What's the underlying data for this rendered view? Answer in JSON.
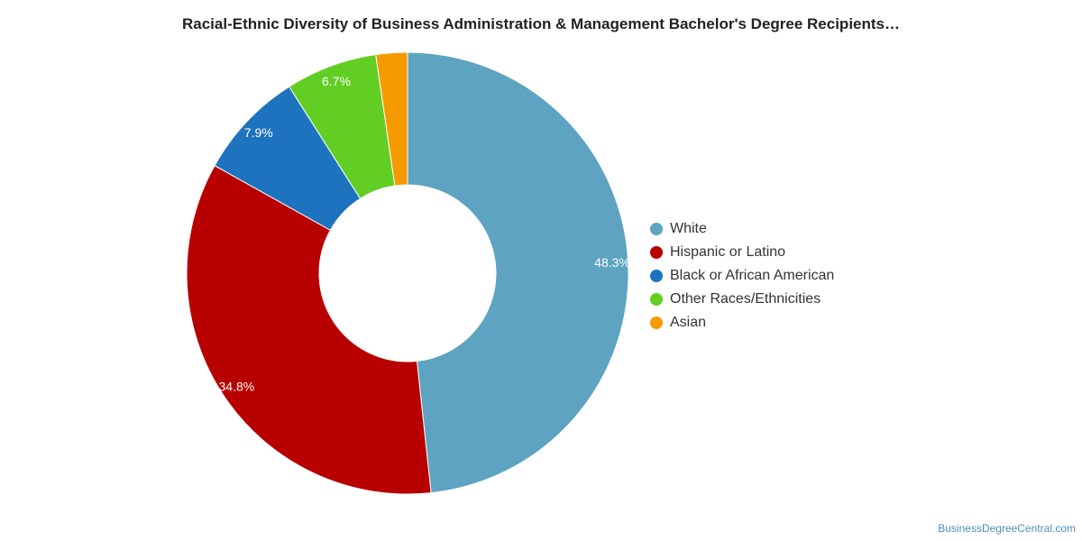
{
  "chart_data": {
    "type": "pie",
    "donut": true,
    "title": "Racial-Ethnic Diversity of Business Administration & Management Bachelor's Degree Recipients…",
    "legend_position": "right",
    "slices": [
      {
        "name": "White",
        "value": 48.3,
        "label": "48.3%",
        "color": "#5ea3c1"
      },
      {
        "name": "Hispanic or Latino",
        "value": 34.8,
        "label": "34.8%",
        "color": "#b80000"
      },
      {
        "name": "Black or African American",
        "value": 7.9,
        "label": "7.9%",
        "color": "#1e73be"
      },
      {
        "name": "Other Races/Ethnicities",
        "value": 6.7,
        "label": "6.7%",
        "color": "#62ce24"
      },
      {
        "name": "Asian",
        "value": 2.3,
        "label": "",
        "color": "#f59a00"
      }
    ]
  },
  "footer": {
    "credit": "BusinessDegreeCentral.com"
  }
}
